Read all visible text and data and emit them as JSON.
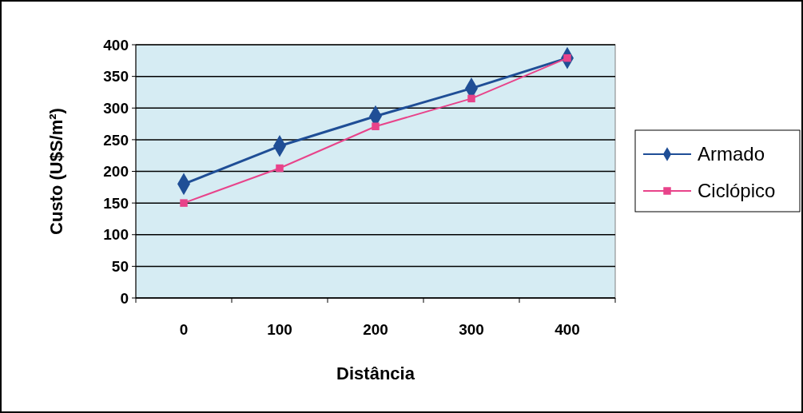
{
  "chart_data": {
    "type": "line",
    "xlabel": "Distância",
    "ylabel": "Custo (U$S/m²)",
    "categories": [
      "0",
      "100",
      "200",
      "300",
      "400"
    ],
    "series": [
      {
        "name": "Armado",
        "color": "#1f4e96",
        "values": [
          180,
          240,
          287,
          331,
          379
        ],
        "marker": "diamond"
      },
      {
        "name": "Ciclópico",
        "color": "#e8438a",
        "values": [
          150,
          205,
          271,
          315,
          379
        ],
        "marker": "square"
      }
    ],
    "ylim": [
      0,
      400
    ],
    "yticks": [
      0,
      50,
      100,
      150,
      200,
      250,
      300,
      350,
      400
    ],
    "grid": "y",
    "legend": "right"
  }
}
